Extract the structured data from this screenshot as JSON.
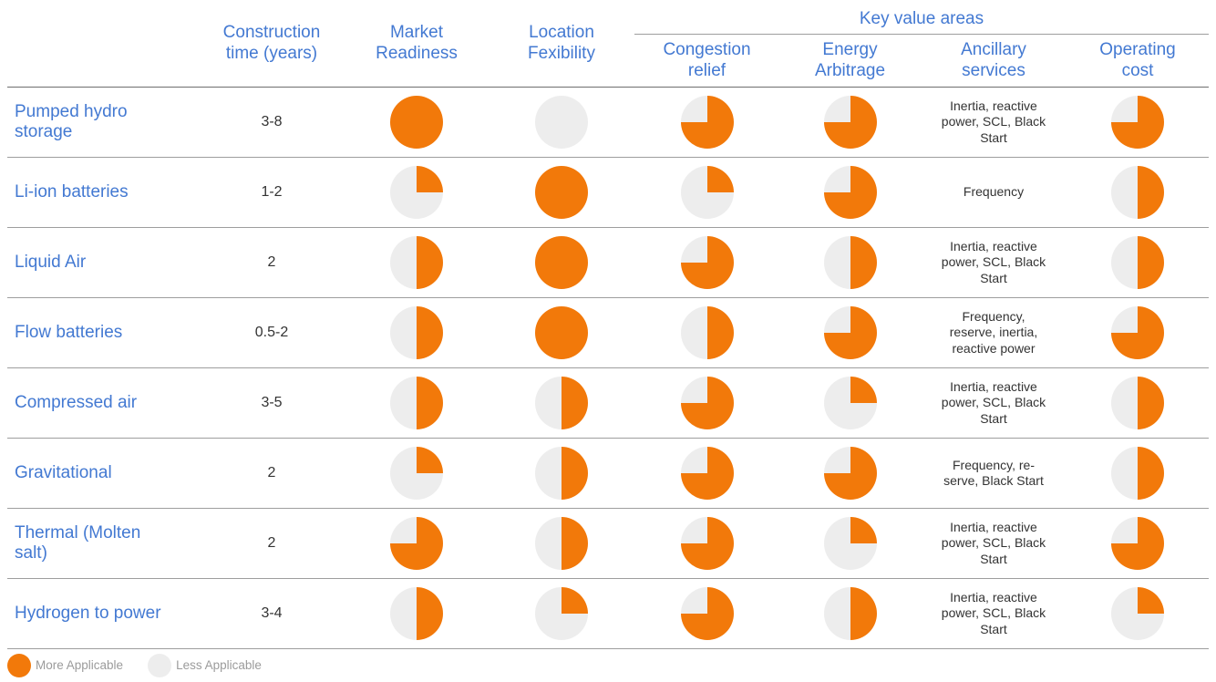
{
  "colors": {
    "orange": "#F2790A",
    "light_gray": "#EDEDED",
    "blue": "#4379D2",
    "separator": "#9E9E9E",
    "header_rule": "#6E6E6E",
    "text_dark": "#333333",
    "legend_text": "#9B9B9B"
  },
  "chart_data": {
    "type": "table",
    "key_value_areas_label": "Key value areas",
    "applicability_scale_note": "pie fill fraction: 1 = More Applicable, 0 = Less Applicable",
    "columns": {
      "technology": "",
      "construction_time": "Construction\ntime (years)",
      "market_readiness": "Market\nReadiness",
      "location_flexibility": "Location\nFexibility",
      "congestion_relief": "Congestion\nrelief",
      "energy_arbitrage": "Energy\nArbitrage",
      "ancillary_services": "Ancillary\nservices",
      "operating_cost": "Operating\ncost"
    },
    "rows": [
      {
        "technology": "Pumped hydro\nstorage",
        "construction_time": "3-8",
        "market_readiness": 1,
        "location_flexibility": 0,
        "congestion_relief": 0.75,
        "energy_arbitrage": 0.75,
        "ancillary_services": "Inertia, reactive\npower, SCL, Black\nStart",
        "operating_cost": 0.75
      },
      {
        "technology": "Li-ion batteries",
        "construction_time": "1-2",
        "market_readiness": 0.25,
        "location_flexibility": 1,
        "congestion_relief": 0.25,
        "energy_arbitrage": 0.75,
        "ancillary_services": "Frequency",
        "operating_cost": 0.5
      },
      {
        "technology": "Liquid Air",
        "construction_time": "2",
        "market_readiness": 0.5,
        "location_flexibility": 1,
        "congestion_relief": 0.75,
        "energy_arbitrage": 0.5,
        "ancillary_services": "Inertia, reactive\npower, SCL, Black\nStart",
        "operating_cost": 0.5
      },
      {
        "technology": "Flow batteries",
        "construction_time": "0.5-2",
        "market_readiness": 0.5,
        "location_flexibility": 1,
        "congestion_relief": 0.5,
        "energy_arbitrage": 0.75,
        "ancillary_services": "Frequency,\nreserve, inertia,\nreactive power",
        "operating_cost": 0.75
      },
      {
        "technology": "Compressed air",
        "construction_time": "3-5",
        "market_readiness": 0.5,
        "location_flexibility": 0.5,
        "congestion_relief": 0.75,
        "energy_arbitrage": 0.25,
        "ancillary_services": "Inertia, reactive\npower, SCL, Black\nStart",
        "operating_cost": 0.5
      },
      {
        "technology": "Gravitational",
        "construction_time": "2",
        "market_readiness": 0.25,
        "location_flexibility": 0.5,
        "congestion_relief": 0.75,
        "energy_arbitrage": 0.75,
        "ancillary_services": "Frequency, re-\nserve, Black Start",
        "operating_cost": 0.5
      },
      {
        "technology": "Thermal (Molten\nsalt)",
        "construction_time": "2",
        "market_readiness": 0.75,
        "location_flexibility": 0.5,
        "congestion_relief": 0.75,
        "energy_arbitrage": 0.25,
        "ancillary_services": "Inertia, reactive\npower, SCL, Black\nStart",
        "operating_cost": 0.75
      },
      {
        "technology": "Hydrogen to power",
        "construction_time": "3-4",
        "market_readiness": 0.5,
        "location_flexibility": 0.25,
        "congestion_relief": 0.75,
        "energy_arbitrage": 0.5,
        "ancillary_services": "Inertia, reactive\npower, SCL, Black\nStart",
        "operating_cost": 0.25
      }
    ],
    "legend": {
      "more_label": "More Applicable",
      "less_label": "Less Applicable"
    }
  }
}
